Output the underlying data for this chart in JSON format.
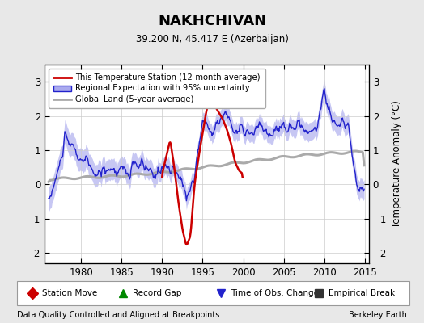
{
  "title": "NAKHCHIVAN",
  "subtitle": "39.200 N, 45.417 E (Azerbaijan)",
  "ylabel": "Temperature Anomaly (°C)",
  "footer_left": "Data Quality Controlled and Aligned at Breakpoints",
  "footer_right": "Berkeley Earth",
  "xlim": [
    1975.5,
    2015.5
  ],
  "ylim": [
    -2.3,
    3.5
  ],
  "yticks": [
    -2,
    -1,
    0,
    1,
    2,
    3
  ],
  "xticks": [
    1980,
    1985,
    1990,
    1995,
    2000,
    2005,
    2010,
    2015
  ],
  "bg_color": "#e8e8e8",
  "plot_bg_color": "#ffffff",
  "red_color": "#cc0000",
  "blue_color": "#2222cc",
  "blue_fill_color": "#aaaaee",
  "gray_color": "#aaaaaa",
  "legend_items": [
    "This Temperature Station (12-month average)",
    "Regional Expectation with 95% uncertainty",
    "Global Land (5-year average)"
  ],
  "bottom_legend": [
    {
      "symbol": "D",
      "color": "#cc0000",
      "label": "Station Move"
    },
    {
      "symbol": "^",
      "color": "#008800",
      "label": "Record Gap"
    },
    {
      "symbol": "v",
      "color": "#2222cc",
      "label": "Time of Obs. Change"
    },
    {
      "symbol": "s",
      "color": "#333333",
      "label": "Empirical Break"
    }
  ],
  "global_xp": [
    1976,
    1980,
    1985,
    1990,
    1995,
    2000,
    2005,
    2010,
    2014
  ],
  "global_fp": [
    0.15,
    0.2,
    0.25,
    0.35,
    0.5,
    0.65,
    0.8,
    0.9,
    0.95
  ],
  "regional_xp": [
    1976,
    1977,
    1978,
    1979,
    1980,
    1981,
    1982,
    1983,
    1984,
    1985,
    1986,
    1987,
    1988,
    1989,
    1990,
    1991,
    1992,
    1993,
    1994,
    1995,
    1996,
    1997,
    1998,
    1999,
    2000,
    2001,
    2002,
    2003,
    2004,
    2005,
    2006,
    2007,
    2008,
    2009,
    2010,
    2011,
    2012,
    2013,
    2014
  ],
  "regional_fp": [
    -0.5,
    0.2,
    1.3,
    1.1,
    0.7,
    0.6,
    0.2,
    0.5,
    0.4,
    0.5,
    0.3,
    0.6,
    0.5,
    0.2,
    0.6,
    0.4,
    0.3,
    -0.3,
    0.2,
    1.9,
    1.6,
    1.8,
    2.1,
    1.5,
    1.6,
    1.4,
    1.7,
    1.5,
    1.5,
    1.7,
    1.6,
    1.8,
    1.5,
    1.6,
    2.8,
    1.8,
    1.7,
    1.8,
    -0.1
  ],
  "red_xp": [
    1990.0,
    1990.5,
    1991.0,
    1991.5,
    1992.0,
    1992.5,
    1993.0,
    1993.5,
    1994.0,
    1994.5,
    1995.0,
    1995.5,
    1996.0,
    1996.5,
    1997.0,
    1997.5,
    1998.0,
    1998.5,
    1999.0,
    1999.5,
    2000.0
  ],
  "red_fp": [
    0.3,
    0.8,
    1.3,
    0.5,
    -0.5,
    -1.3,
    -1.8,
    -1.5,
    0.0,
    0.8,
    1.5,
    2.2,
    2.5,
    2.3,
    2.1,
    1.9,
    1.6,
    1.2,
    0.65,
    0.4,
    0.3
  ],
  "uncertainty_xp": [
    1976,
    1985,
    1995,
    2005,
    2014
  ],
  "uncertainty_fp": [
    0.35,
    0.3,
    0.25,
    0.25,
    0.28
  ]
}
